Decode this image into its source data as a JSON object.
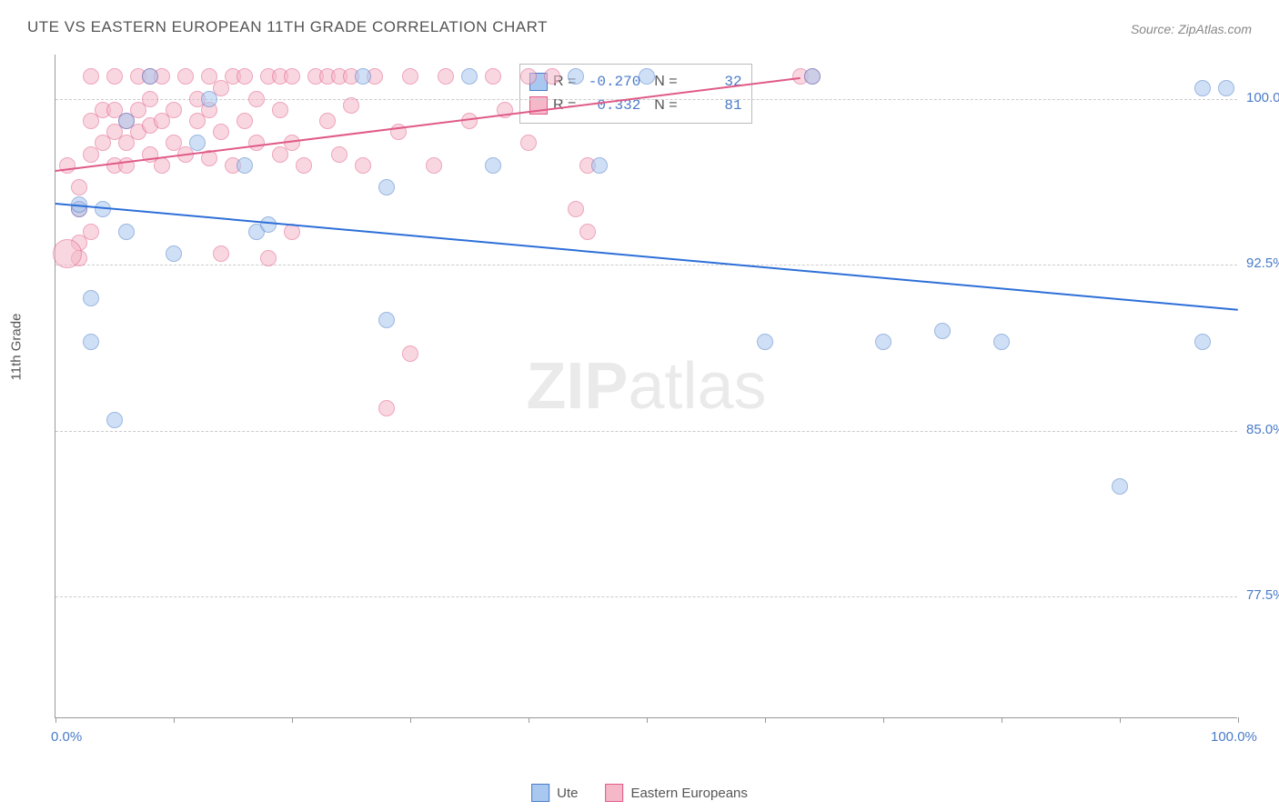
{
  "title": "UTE VS EASTERN EUROPEAN 11TH GRADE CORRELATION CHART",
  "source": "Source: ZipAtlas.com",
  "y_axis_label": "11th Grade",
  "watermark": {
    "bold": "ZIP",
    "light": "atlas"
  },
  "colors": {
    "ute_fill": "#a8c8f0",
    "ute_stroke": "#4a7bc8",
    "ee_fill": "#f5b8c8",
    "ee_stroke": "#e05a88",
    "trend_ute": "#2d6fd8",
    "trend_ee": "#e05a88",
    "tick_text": "#4a7bc8",
    "grid": "#cccccc"
  },
  "xlim": [
    0,
    100
  ],
  "ylim": [
    72,
    102
  ],
  "y_ticks": [
    77.5,
    85.0,
    92.5,
    100.0
  ],
  "x_ticks": [
    0,
    10,
    20,
    30,
    40,
    50,
    60,
    70,
    80,
    90,
    100
  ],
  "x_tick_labels": {
    "0": "0.0%",
    "100": "100.0%"
  },
  "marker_radius": 9,
  "stats": [
    {
      "series": "ute",
      "R": "-0.270",
      "N": "32"
    },
    {
      "series": "ee",
      "R": "0.332",
      "N": "81"
    }
  ],
  "trend_lines": {
    "ute": {
      "x1": 0,
      "y1": 95.3,
      "x2": 100,
      "y2": 90.5
    },
    "ee": {
      "x1": 0,
      "y1": 96.8,
      "x2": 63,
      "y2": 101.0
    }
  },
  "series": {
    "ute": {
      "label": "Ute",
      "points": [
        [
          8,
          101
        ],
        [
          6,
          99
        ],
        [
          2,
          95
        ],
        [
          4,
          95
        ],
        [
          6,
          94
        ],
        [
          3,
          91
        ],
        [
          3,
          89
        ],
        [
          5,
          85.5
        ],
        [
          13,
          100
        ],
        [
          12,
          98
        ],
        [
          17,
          94
        ],
        [
          16,
          97
        ],
        [
          26,
          101
        ],
        [
          28,
          96
        ],
        [
          28,
          90
        ],
        [
          35,
          101
        ],
        [
          37,
          97
        ],
        [
          44,
          101
        ],
        [
          46,
          97
        ],
        [
          50,
          101
        ],
        [
          60,
          89
        ],
        [
          64,
          101
        ],
        [
          70,
          89
        ],
        [
          75,
          89.5
        ],
        [
          80,
          89
        ],
        [
          90,
          82.5
        ],
        [
          97,
          89
        ],
        [
          97,
          100.5
        ],
        [
          99,
          100.5
        ],
        [
          2,
          95.2
        ],
        [
          10,
          93
        ],
        [
          18,
          94.3
        ]
      ]
    },
    "ee": {
      "label": "Eastern Europeans",
      "points": [
        [
          1,
          97
        ],
        [
          2,
          96
        ],
        [
          2,
          92.8
        ],
        [
          2,
          95
        ],
        [
          3,
          97.5
        ],
        [
          3,
          99
        ],
        [
          3,
          101
        ],
        [
          4,
          98
        ],
        [
          4,
          99.5
        ],
        [
          5,
          97
        ],
        [
          5,
          98.5
        ],
        [
          5,
          99.5
        ],
        [
          5,
          101
        ],
        [
          6,
          97
        ],
        [
          6,
          98
        ],
        [
          6,
          99
        ],
        [
          7,
          98.5
        ],
        [
          7,
          99.5
        ],
        [
          7,
          101
        ],
        [
          8,
          97.5
        ],
        [
          8,
          98.8
        ],
        [
          8,
          100
        ],
        [
          8,
          101
        ],
        [
          9,
          97
        ],
        [
          9,
          99
        ],
        [
          9,
          101
        ],
        [
          10,
          98
        ],
        [
          10,
          99.5
        ],
        [
          11,
          97.5
        ],
        [
          11,
          101
        ],
        [
          12,
          99
        ],
        [
          12,
          100
        ],
        [
          13,
          97.3
        ],
        [
          13,
          99.5
        ],
        [
          13,
          101
        ],
        [
          14,
          98.5
        ],
        [
          14,
          100.5
        ],
        [
          14,
          93
        ],
        [
          15,
          97
        ],
        [
          15,
          101
        ],
        [
          16,
          99
        ],
        [
          16,
          101
        ],
        [
          17,
          98
        ],
        [
          17,
          100
        ],
        [
          18,
          101
        ],
        [
          19,
          97.5
        ],
        [
          19,
          99.5
        ],
        [
          19,
          101
        ],
        [
          20,
          94
        ],
        [
          20,
          98
        ],
        [
          20,
          101
        ],
        [
          21,
          97
        ],
        [
          22,
          101
        ],
        [
          23,
          99
        ],
        [
          23,
          101
        ],
        [
          24,
          97.5
        ],
        [
          24,
          101
        ],
        [
          25,
          99.7
        ],
        [
          25,
          101
        ],
        [
          26,
          97
        ],
        [
          27,
          101
        ],
        [
          28,
          86
        ],
        [
          29,
          98.5
        ],
        [
          30,
          88.5
        ],
        [
          30,
          101
        ],
        [
          32,
          97
        ],
        [
          33,
          101
        ],
        [
          35,
          99
        ],
        [
          37,
          101
        ],
        [
          38,
          99.5
        ],
        [
          40,
          101
        ],
        [
          42,
          101
        ],
        [
          40,
          98
        ],
        [
          45,
          97
        ],
        [
          44,
          95
        ],
        [
          45,
          94
        ],
        [
          63,
          101
        ],
        [
          64,
          101
        ],
        [
          18,
          92.8
        ],
        [
          2,
          93.5
        ],
        [
          3,
          94
        ]
      ]
    }
  },
  "extra_points": [
    {
      "series": "ee",
      "x": 1,
      "y": 93,
      "radius": 16
    }
  ]
}
